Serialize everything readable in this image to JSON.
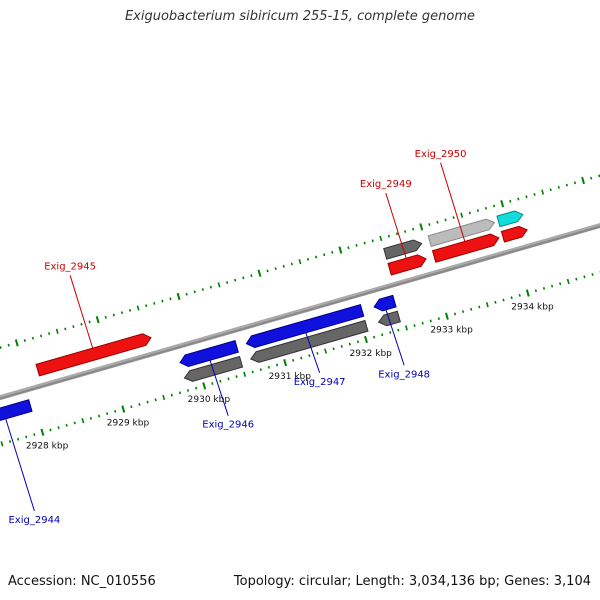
{
  "title": "Exiguobacterium sibiricum 255-15, complete genome",
  "footer": {
    "accession": "Accession: NC_010556",
    "summary": "Topology: circular; Length: 3,034,136 bp; Genes: 3,104"
  },
  "colors": {
    "forward_gene": "#ee1111",
    "reverse_gene": "#1111dd",
    "forward_label": "#cc0000",
    "reverse_label": "#0000bb",
    "gray_feature": "#666666",
    "light_gray_feature": "#bbbbbb",
    "cyan_feature": "#11dddd",
    "backbone": "#888888",
    "tick": "#008000"
  },
  "kbp_labels": [
    {
      "kbp": 2928,
      "text": "2928 kbp"
    },
    {
      "kbp": 2929,
      "text": "2929 kbp"
    },
    {
      "kbp": 2930,
      "text": "2930 kbp"
    },
    {
      "kbp": 2931,
      "text": "2931 kbp"
    },
    {
      "kbp": 2932,
      "text": "2932 kbp"
    },
    {
      "kbp": 2933,
      "text": "2933 kbp"
    },
    {
      "kbp": 2934,
      "text": "2934 kbp"
    }
  ],
  "genes": [
    {
      "name": "Exig_2944",
      "strand": "reverse",
      "start_kbp": 2927.3,
      "end_kbp": 2927.95
    },
    {
      "name": "Exig_2945",
      "strand": "forward",
      "start_kbp": 2928.15,
      "end_kbp": 2929.55
    },
    {
      "name": "Exig_2946",
      "strand": "reverse",
      "start_kbp": 2929.8,
      "end_kbp": 2930.5
    },
    {
      "name": "Exig_2947",
      "strand": "reverse",
      "start_kbp": 2930.62,
      "end_kbp": 2932.05
    },
    {
      "name": "Exig_2948",
      "strand": "reverse",
      "start_kbp": 2932.2,
      "end_kbp": 2932.45
    },
    {
      "name": "Exig_2949",
      "strand": "forward",
      "start_kbp": 2932.5,
      "end_kbp": 2932.95
    },
    {
      "name": "Exig_2950",
      "strand": "forward",
      "start_kbp": 2933.05,
      "end_kbp": 2933.85
    }
  ],
  "extra_features": [
    {
      "kind": "gray",
      "strand": "reverse",
      "start_kbp": 2929.8,
      "end_kbp": 2930.5
    },
    {
      "kind": "gray",
      "strand": "reverse",
      "start_kbp": 2930.62,
      "end_kbp": 2932.05
    },
    {
      "kind": "gray",
      "strand": "reverse",
      "start_kbp": 2932.2,
      "end_kbp": 2932.45
    },
    {
      "kind": "gray",
      "strand": "forward",
      "start_kbp": 2932.5,
      "end_kbp": 2932.95
    },
    {
      "kind": "light-gray",
      "strand": "forward",
      "start_kbp": 2933.05,
      "end_kbp": 2933.85
    },
    {
      "kind": "cyan",
      "strand": "forward",
      "start_kbp": 2933.9,
      "end_kbp": 2934.2
    },
    {
      "kind": "red",
      "strand": "forward",
      "start_kbp": 2933.9,
      "end_kbp": 2934.2
    }
  ]
}
